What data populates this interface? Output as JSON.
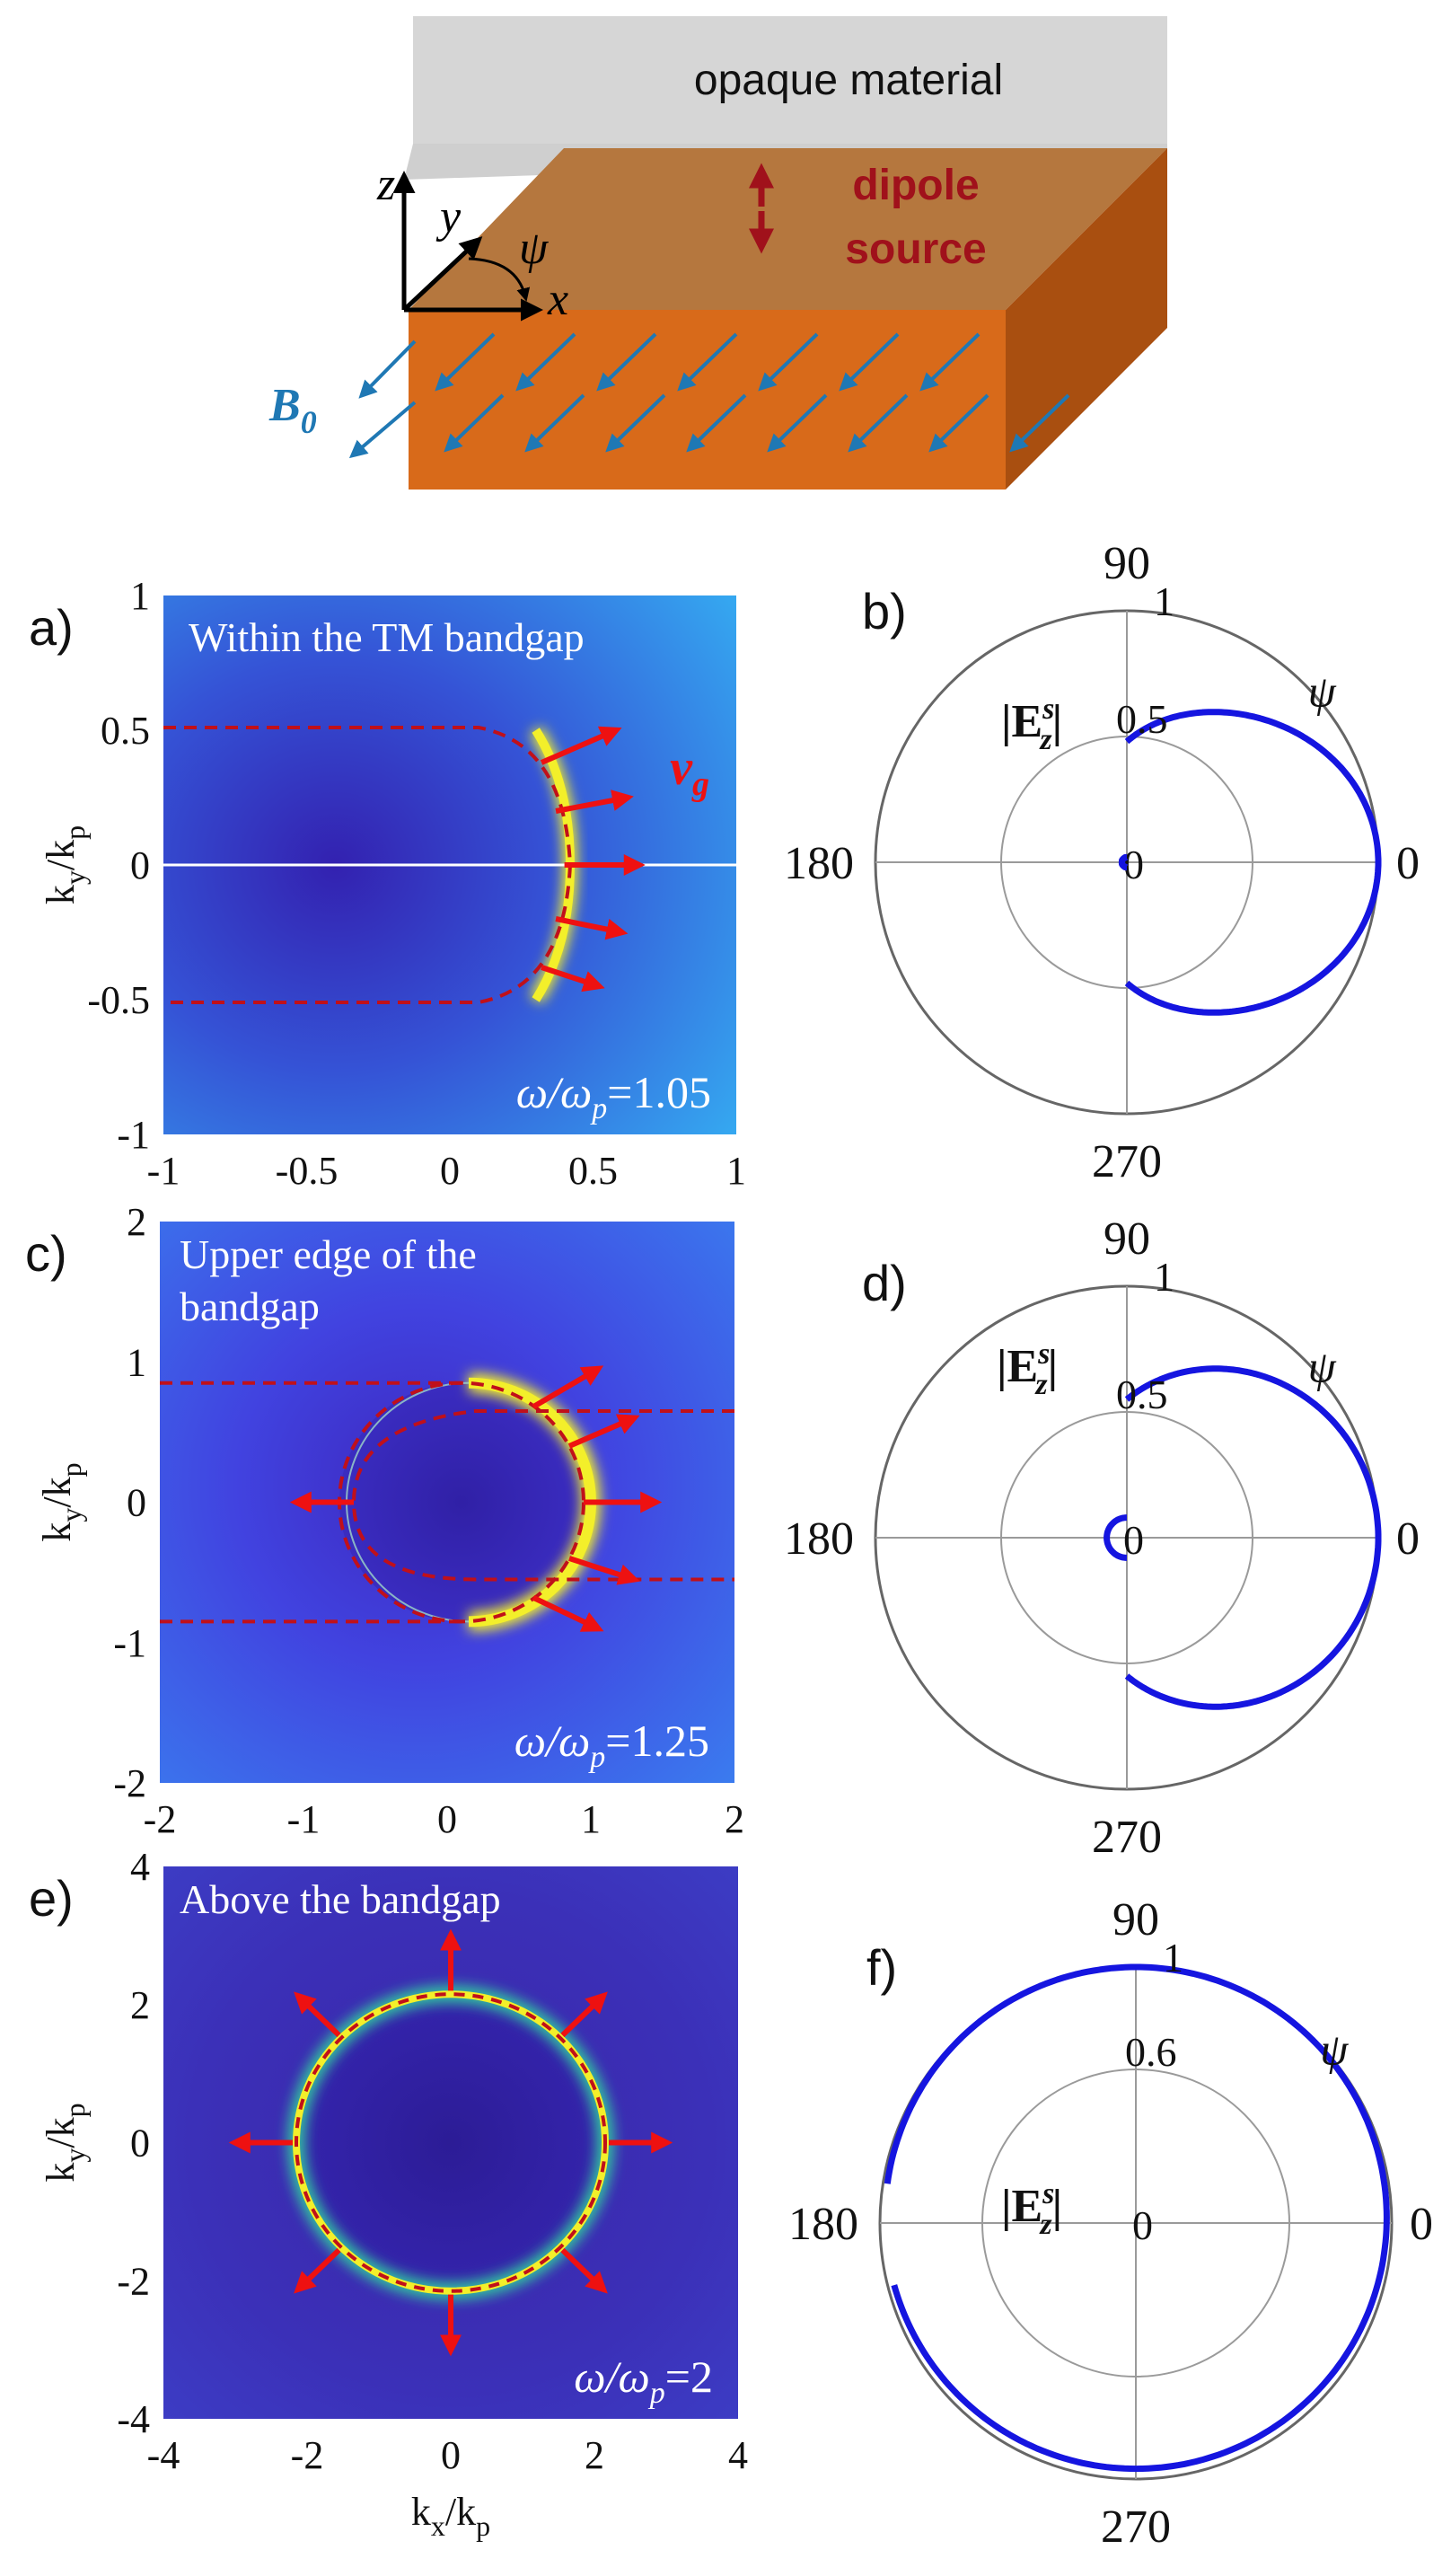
{
  "schematic": {
    "top_label": "opaque material",
    "source_label_line1": "dipole",
    "source_label_line2": "source",
    "axis_z": "z",
    "axis_y": "y",
    "axis_x": "x",
    "angle_symbol": "ψ",
    "field_label": "B",
    "field_subscript": "0",
    "colors": {
      "top_layer": "#d6d6d6",
      "slab_front": "#d86a1a",
      "slab_top": "#b5773e",
      "slab_side": "#a94f10",
      "field_arrows": "#1f78b4",
      "dipole": "#a0111b"
    }
  },
  "map_panels": [
    {
      "panel_label": "a)",
      "caption": "Within the TM bandgap",
      "freq_prefix": "ω/ω",
      "freq_sub": "p",
      "freq_value": "=1.05",
      "group_velocity_label": "v",
      "group_velocity_sub": "g",
      "xlim": [
        -1,
        1
      ],
      "ylim": [
        -1,
        1
      ],
      "xticks": [
        "-1",
        "-0.5",
        "0",
        "0.5",
        "1"
      ],
      "yticks": [
        "1",
        "0.5",
        "0",
        "-0.5",
        "-1"
      ],
      "ylabel_k": "k",
      "ylabel_y": "y",
      "ylabel_slash": "/k",
      "ylabel_p": "p",
      "dashed_curve": "open curve: y=±0.5 rays for k_x<0.1, closing at k_x≈0.4",
      "background": "#3a78e6"
    },
    {
      "panel_label": "c)",
      "caption_line1": "Upper edge of the",
      "caption_line2": "bandgap",
      "freq_prefix": "ω/ω",
      "freq_sub": "p",
      "freq_value": "=1.25",
      "xlim": [
        -2,
        2
      ],
      "ylim": [
        -2,
        2
      ],
      "xticks": [
        "-2",
        "-1",
        "0",
        "1",
        "2"
      ],
      "yticks": [
        "2",
        "1",
        "0",
        "-1",
        "-2"
      ],
      "ylabel_k": "k",
      "ylabel_y": "y",
      "ylabel_slash": "/k",
      "ylabel_p": "p",
      "ring_center": [
        0.1,
        0
      ],
      "ring_radius": 0.85,
      "background": "#3d5ff0"
    },
    {
      "panel_label": "e)",
      "caption": "Above the bandgap",
      "freq_prefix": "ω/ω",
      "freq_sub": "p",
      "freq_value": "=2",
      "xlim": [
        -4,
        4
      ],
      "ylim": [
        -4,
        4
      ],
      "xticks": [
        "-4",
        "-2",
        "0",
        "2",
        "4"
      ],
      "yticks": [
        "4",
        "2",
        "0",
        "-2",
        "-4"
      ],
      "ylabel_k": "k",
      "ylabel_y": "y",
      "ylabel_slash": "/k",
      "ylabel_p": "p",
      "xlabel_k": "k",
      "xlabel_x": "x",
      "xlabel_slash": "/k",
      "xlabel_p": "p",
      "ring_center": [
        0,
        0
      ],
      "ring_radius": 2.15,
      "background": "#3a2fb8"
    }
  ],
  "polar_panels": [
    {
      "panel_label": "b)",
      "angle_labels": {
        "top": "90",
        "left": "180",
        "right": "0",
        "bottom": "270"
      },
      "ring_labels": [
        "0.5",
        "1"
      ],
      "center_label": "0",
      "quantity_main": "|E",
      "quantity_sup": "s",
      "quantity_sub": "z",
      "quantity_end": "|",
      "angle_symbol": "ψ"
    },
    {
      "panel_label": "d)",
      "angle_labels": {
        "top": "90",
        "left": "180",
        "right": "0",
        "bottom": "270"
      },
      "ring_labels": [
        "0.5",
        "1"
      ],
      "center_label": "0",
      "quantity_main": "|E",
      "quantity_sup": "s",
      "quantity_sub": "z",
      "quantity_end": "|",
      "angle_symbol": "ψ"
    },
    {
      "panel_label": "f)",
      "angle_labels": {
        "top": "90",
        "left": "180",
        "right": "0",
        "bottom": "270"
      },
      "ring_labels": [
        "0.6",
        "1"
      ],
      "center_label": "0",
      "quantity_main": "|E",
      "quantity_sup": "s",
      "quantity_sub": "z",
      "quantity_end": "|",
      "angle_symbol": "ψ"
    }
  ],
  "colors": {
    "dashed_curve": "#c0101a",
    "arrows": "#ee1111",
    "pattern": "#1515e0",
    "ring_glow": "#f3ef2a",
    "polar_grid": "#9a9a9a"
  }
}
